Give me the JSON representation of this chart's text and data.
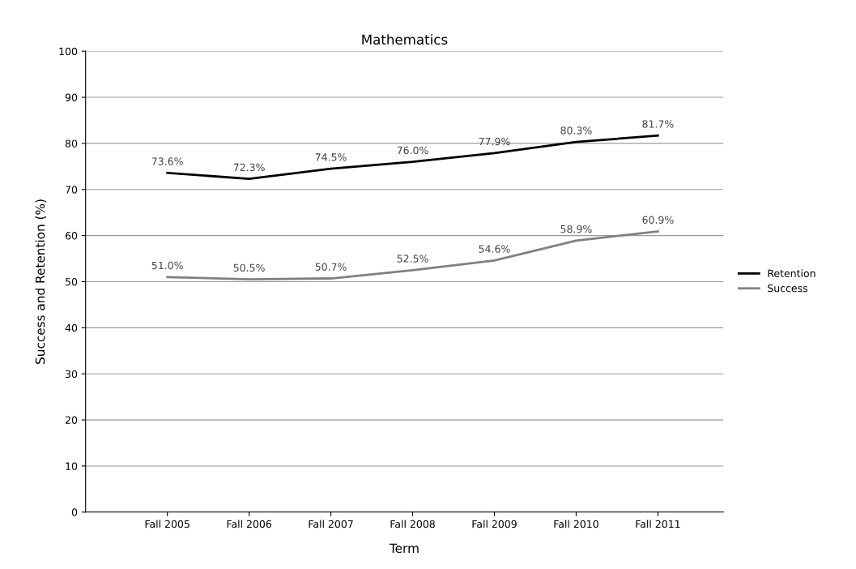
{
  "chart_data": {
    "type": "line",
    "title": "Mathematics",
    "xlabel": "Term",
    "ylabel": "Success and Retention (%)",
    "categories": [
      "Fall 2005",
      "Fall 2006",
      "Fall 2007",
      "Fall 2008",
      "Fall 2009",
      "Fall 2010",
      "Fall 2011"
    ],
    "series": [
      {
        "name": "Retention",
        "color": "#000000",
        "values": [
          73.6,
          72.3,
          74.5,
          76.0,
          77.9,
          80.3,
          81.7
        ],
        "value_labels": [
          "73.6%",
          "72.3%",
          "74.5%",
          "76.0%",
          "77.9%",
          "80.3%",
          "81.7%"
        ]
      },
      {
        "name": "Success",
        "color": "#808080",
        "values": [
          51.0,
          50.5,
          50.7,
          52.5,
          54.6,
          58.9,
          60.9
        ],
        "value_labels": [
          "51.0%",
          "50.5%",
          "50.7%",
          "52.5%",
          "54.6%",
          "58.9%",
          "60.9%"
        ]
      }
    ],
    "ylim": [
      0,
      100
    ],
    "yticks": [
      0,
      10,
      20,
      30,
      40,
      50,
      60,
      70,
      80,
      90,
      100
    ],
    "grid": "y",
    "legend": "right",
    "marker": "none",
    "line_style": "solid"
  }
}
